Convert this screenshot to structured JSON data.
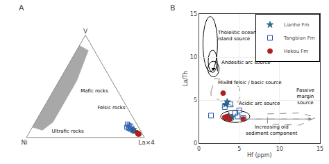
{
  "chart_data": [
    {
      "type": "ternary",
      "title": "A",
      "axis_labels": {
        "top": "V",
        "left": "Ni",
        "right": "La×4"
      },
      "tick_labels": false,
      "grid": false,
      "series": [
        {
          "name": "Lianhe Fm",
          "color": "#2d6b8a",
          "marker": "star",
          "values": [
            [
              0.06,
              0.06,
              0.88
            ],
            [
              0.07,
              0.06,
              0.87
            ],
            [
              0.08,
              0.05,
              0.87
            ],
            [
              0.07,
              0.07,
              0.86
            ],
            [
              0.06,
              0.05,
              0.89
            ]
          ]
        },
        {
          "name": "Tangbian Fm",
          "color": "#2255aa",
          "marker": "open square",
          "values": [
            [
              0.1,
              0.08,
              0.82
            ],
            [
              0.12,
              0.07,
              0.81
            ],
            [
              0.09,
              0.09,
              0.82
            ],
            [
              0.11,
              0.06,
              0.83
            ],
            [
              0.13,
              0.08,
              0.79
            ],
            [
              0.08,
              0.08,
              0.84
            ],
            [
              0.1,
              0.1,
              0.8
            ]
          ]
        },
        {
          "name": "Hekou Fm",
          "color": "#aa2222",
          "marker": "circle",
          "values": [
            [
              0.04,
              0.04,
              0.92
            ],
            [
              0.03,
              0.04,
              0.93
            ],
            [
              0.05,
              0.04,
              0.91
            ],
            [
              0.04,
              0.03,
              0.93
            ],
            [
              0.03,
              0.03,
              0.94
            ],
            [
              0.04,
              0.03,
              0.93
            ]
          ]
        }
      ],
      "regions": [
        {
          "color": "#999999",
          "values": [
            [
              0.9,
              0.1,
              0.0
            ],
            [
              0.6,
              0.4,
              0.0
            ],
            [
              0.2,
              0.8,
              0.0
            ],
            [
              0.1,
              0.9,
              0.0
            ],
            [
              0.07,
              0.83,
              0.1
            ],
            [
              0.15,
              0.7,
              0.15
            ],
            [
              0.55,
              0.3,
              0.15
            ],
            [
              0.85,
              0.05,
              0.1
            ]
          ]
        }
      ],
      "annotations": [
        "Mafic rocks",
        "Ultrafic rocks",
        "Felsic rocks"
      ]
    },
    {
      "type": "scatter",
      "title": "B",
      "x_label": "Hf (ppm)",
      "y_label": "La/Th",
      "xlim": [
        0,
        15
      ],
      "ylim": [
        0,
        15
      ],
      "xticks": [
        0,
        5,
        10,
        15
      ],
      "yticks": [
        0,
        5,
        10,
        15
      ],
      "legend": "upper right",
      "series": [
        {
          "name": "Lianhe Fm",
          "color": "#2d6b8a",
          "marker": "star",
          "x": [
            3.3,
            3.7,
            4.1,
            3.9,
            3.5
          ],
          "values": [
            4.5,
            3.2,
            3.0,
            2.9,
            4.8
          ]
        },
        {
          "name": "Tangbian Fm",
          "color": "#2255aa",
          "marker": "open square",
          "x": [
            1.5,
            3.2,
            4.5,
            5.0,
            5.5,
            4.8,
            3.9
          ],
          "values": [
            3.2,
            4.2,
            3.5,
            3.8,
            2.9,
            3.1,
            4.5
          ]
        },
        {
          "name": "Hekou Fm",
          "color": "#aa2222",
          "marker": "circle",
          "x": [
            3.0,
            3.2,
            3.4,
            3.5,
            3.8,
            5.5
          ],
          "values": [
            5.8,
            3.0,
            2.9,
            3.1,
            2.8,
            2.8
          ]
        }
      ],
      "fields": [
        {
          "shape": "ellipse",
          "x": [
            0.5,
            2.3
          ],
          "y": [
            8.3,
            14.7
          ],
          "color": "#000000",
          "line_style": "solid",
          "label": "Tholeiitic ocean\nisland source",
          "label_at": [
            2.1,
            13.3
          ]
        },
        {
          "shape": "ellipse",
          "x": [
            1.15,
            2.25
          ],
          "y": [
            8.2,
            10.8
          ],
          "color": "#000000",
          "line_style": "solid"
        },
        {
          "shape": "line",
          "x": [
            2.25,
            2.3
          ],
          "y": [
            9.5,
            8.35
          ],
          "color": "#000000",
          "line_style": "solid"
        },
        {
          "shape": "ellipse",
          "x": [
            1.1,
            2.5
          ],
          "y": [
            7.7,
            9.5
          ],
          "color": "#000000",
          "line_style": "solid",
          "point": [
            1.8,
            8.6
          ],
          "label": "Andesitic arc source",
          "label_at": [
            2.6,
            8.9
          ]
        },
        {
          "shape": "polygon",
          "x": [
            1.5,
            2.0,
            3.5,
            5.0,
            5.2,
            4.5,
            2.5,
            1.5,
            1.5
          ],
          "y": [
            6.0,
            7.5,
            7.3,
            6.5,
            5.5,
            4.2,
            5.0,
            5.5,
            6.0
          ],
          "color": "#888888",
          "line_style": "dashed",
          "label": "Mixed felsic / basic source",
          "label_at": [
            2.2,
            6.5
          ]
        },
        {
          "shape": "ellipse",
          "x": [
            2.7,
            6.3
          ],
          "y": [
            2.4,
            3.8
          ],
          "color": "#000000",
          "line_style": "solid",
          "label": "Acidic arc source",
          "label_at": [
            4.8,
            4.1
          ]
        },
        {
          "shape": "polygon",
          "x": [
            8.5,
            12.5,
            14.5,
            12.5,
            8.5,
            8.5
          ],
          "y": [
            3.4,
            3.5,
            3.0,
            2.1,
            2.2,
            3.4
          ],
          "color": "#888888",
          "line_style": "dashed",
          "label": "Passive\nmargin\nsource",
          "label_at": [
            13.2,
            4.2
          ]
        },
        {
          "shape": "arrow",
          "x": [
            5.5,
            14.0
          ],
          "y": [
            2.8,
            2.8
          ],
          "color": "#888888",
          "line_style": "dashed",
          "label": "Increasing old\nsediment component",
          "label_at": [
            9.0,
            2.3
          ]
        }
      ]
    }
  ]
}
